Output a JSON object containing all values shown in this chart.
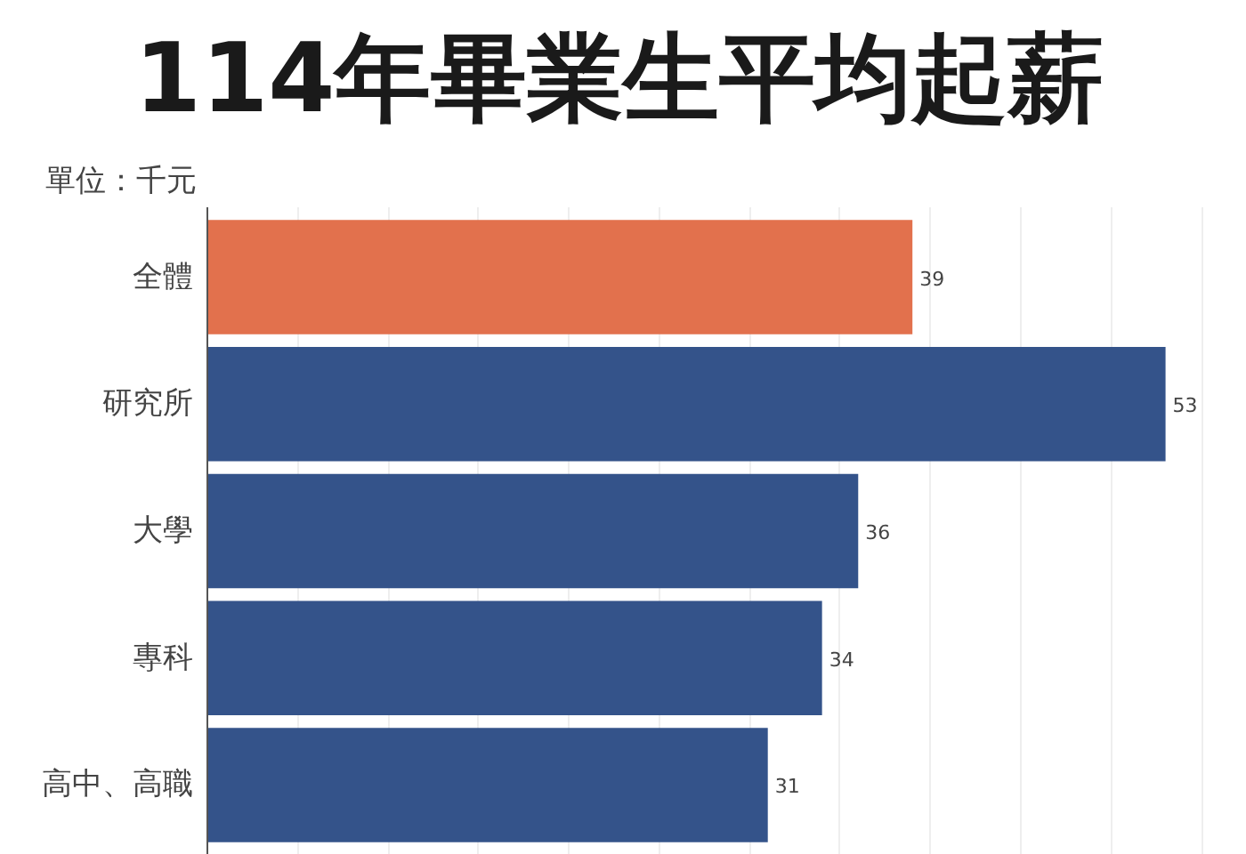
{
  "chart_data": {
    "type": "bar",
    "orientation": "horizontal",
    "title": "114年畢業生平均起薪",
    "annotations": [
      "單位：千元"
    ],
    "categories": [
      "全體",
      "研究所",
      "大學",
      "專科",
      "高中、高職"
    ],
    "values": [
      39,
      53,
      36,
      34,
      31
    ],
    "colors": [
      "#e2714d",
      "#34538a",
      "#34538a",
      "#34538a",
      "#34538a"
    ],
    "data_labels": true,
    "xticks": [
      {
        "value": 0,
        "label": null
      },
      {
        "value": 5,
        "label": null
      },
      {
        "value": 10,
        "label": null
      },
      {
        "value": 15,
        "label": null
      },
      {
        "value": 20,
        "label": null
      },
      {
        "value": 25,
        "label": null
      },
      {
        "value": 30,
        "label": null
      },
      {
        "value": 35,
        "label": null
      },
      {
        "value": 40,
        "label": null
      },
      {
        "value": 45,
        "label": null
      },
      {
        "value": 50,
        "label": null
      },
      {
        "value": 55,
        "label": null
      }
    ],
    "grid": "x",
    "tick_labels": "y"
  }
}
